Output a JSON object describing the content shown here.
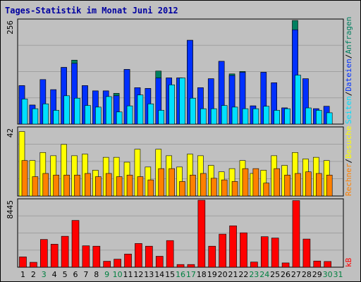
{
  "title": "Tages-Statistik im Monat Juni 2012",
  "colors": {
    "background": "#c0c0c0",
    "grid": "#a0a0a0",
    "title": "#0000a0",
    "anfragen": "#008060",
    "dateien": "#0030ff",
    "seiten": "#00e0ff",
    "besuche": "#ffff00",
    "rechner": "#ff8000",
    "kb": "#ff0000",
    "weekday": "#000000",
    "weekend": "#008040"
  },
  "chart_data": [
    {
      "type": "bar",
      "name": "hits-files-pages",
      "ymax_label": "256",
      "ylim": [
        0,
        256
      ],
      "legend": [
        "Anfragen",
        "/",
        "Dateien",
        "/",
        "Seiten"
      ],
      "categories": [
        "1",
        "2",
        "3",
        "4",
        "5",
        "6",
        "7",
        "8",
        "9",
        "10",
        "11",
        "12",
        "13",
        "14",
        "15",
        "16",
        "17",
        "18",
        "19",
        "20",
        "21",
        "22",
        "23",
        "24",
        "25",
        "26",
        "27",
        "28",
        "29",
        "30",
        "31"
      ],
      "series": [
        {
          "name": "Anfragen",
          "values": [
            95,
            47,
            110,
            85,
            140,
            158,
            95,
            82,
            82,
            76,
            135,
            90,
            88,
            131,
            114,
            114,
            207,
            90,
            112,
            155,
            124,
            130,
            45,
            128,
            102,
            40,
            256,
            112,
            38,
            44,
            0
          ]
        },
        {
          "name": "Dateien",
          "values": [
            95,
            47,
            110,
            85,
            140,
            150,
            95,
            82,
            82,
            70,
            135,
            90,
            88,
            114,
            114,
            114,
            207,
            90,
            112,
            155,
            120,
            128,
            45,
            128,
            102,
            40,
            233,
            112,
            38,
            44,
            0
          ]
        },
        {
          "name": "Seiten",
          "values": [
            62,
            38,
            50,
            34,
            70,
            64,
            46,
            42,
            68,
            30,
            45,
            72,
            50,
            34,
            97,
            114,
            64,
            38,
            38,
            46,
            42,
            38,
            38,
            44,
            34,
            38,
            121,
            40,
            34,
            28,
            0
          ]
        }
      ],
      "x_label_colors": [
        "weekday",
        "weekday",
        "weekend",
        "weekday",
        "weekday",
        "weekday",
        "weekday",
        "weekday",
        "weekend",
        "weekend",
        "weekday",
        "weekday",
        "weekday",
        "weekday",
        "weekday",
        "weekend",
        "weekend",
        "weekday",
        "weekday",
        "weekday",
        "weekday",
        "weekday",
        "weekend",
        "weekend",
        "weekday",
        "weekday",
        "weekday",
        "weekday",
        "weekday",
        "weekend",
        "weekend"
      ]
    },
    {
      "type": "bar",
      "name": "visits-sites",
      "ymax_label": "42",
      "ylim": [
        0,
        42
      ],
      "legend": [
        "Besuche",
        "/",
        "Rechner"
      ],
      "series": [
        {
          "name": "Besuche",
          "values": [
            40,
            22,
            27,
            25,
            32,
            25,
            26,
            16,
            24,
            24,
            21,
            29,
            18,
            29,
            25,
            18,
            26,
            25,
            19,
            15,
            17,
            22,
            14,
            16,
            25,
            19,
            27,
            23,
            24,
            22,
            0
          ]
        },
        {
          "name": "Rechner",
          "values": [
            22,
            12,
            14,
            13,
            13,
            13,
            14,
            12,
            14,
            12,
            13,
            12,
            10,
            17,
            17,
            9,
            13,
            14,
            11,
            10,
            9,
            17,
            17,
            8,
            17,
            13,
            14,
            15,
            14,
            13,
            0
          ]
        }
      ]
    },
    {
      "type": "bar",
      "name": "kb",
      "ymax_label": "8445",
      "ylim": [
        0,
        8445
      ],
      "legend": [
        "kB"
      ],
      "series": [
        {
          "name": "kB",
          "values": [
            1300,
            620,
            3500,
            2900,
            3900,
            5900,
            2700,
            2650,
            750,
            1015,
            1660,
            2990,
            2650,
            1380,
            3360,
            340,
            340,
            8445,
            2650,
            4170,
            5220,
            4340,
            650,
            3850,
            3680,
            540,
            8400,
            3550,
            780,
            720,
            0
          ]
        }
      ]
    }
  ]
}
